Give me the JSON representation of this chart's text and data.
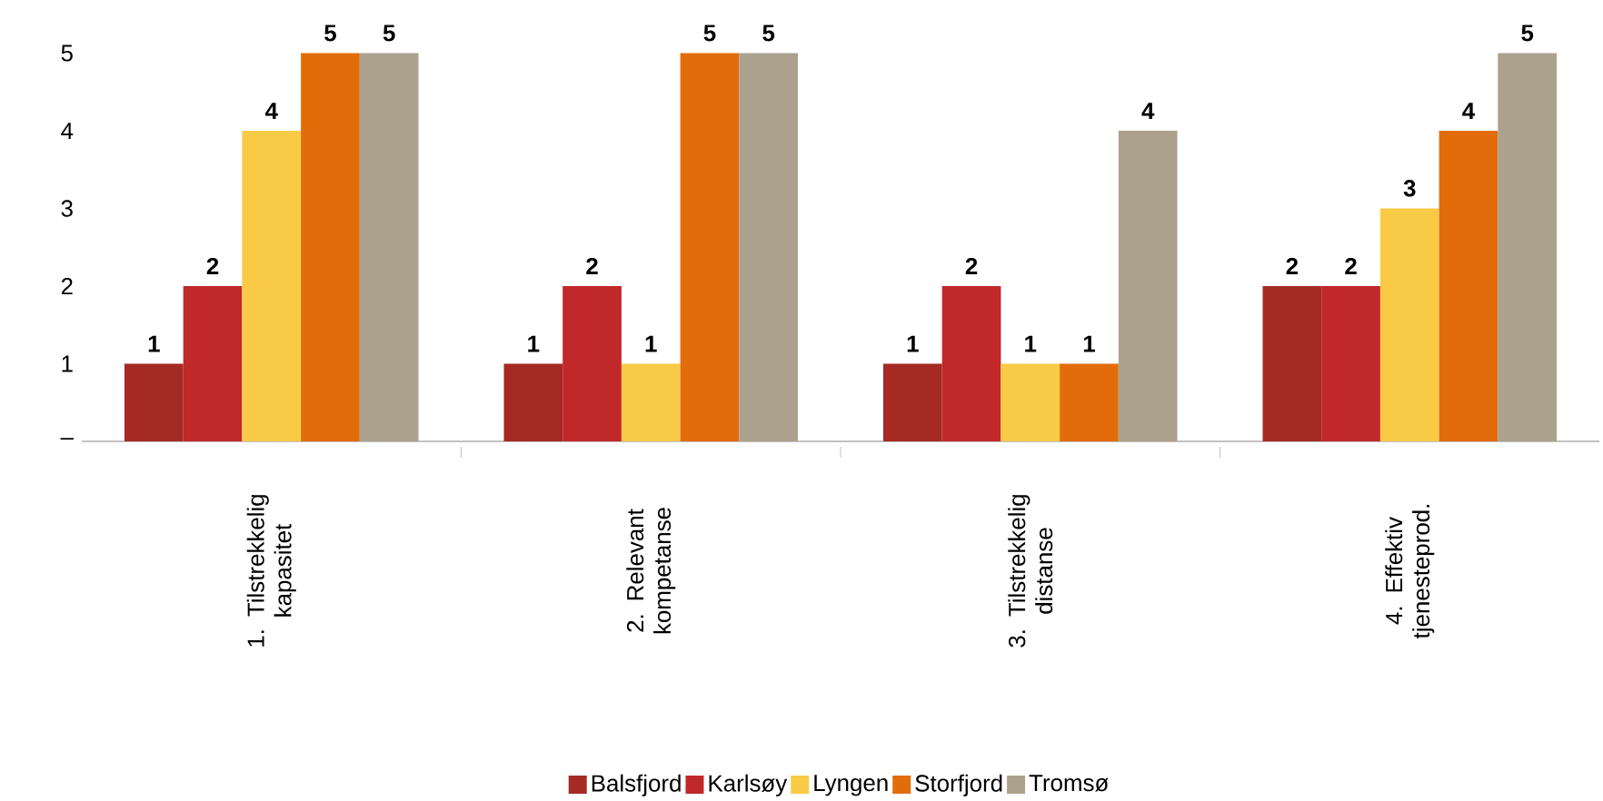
{
  "chart_data": {
    "type": "bar",
    "categories": [
      "1. Tilstrekkelig kapasitet",
      "2. Relevant kompetanse",
      "3. Tilstrekkelig distanse",
      "4. Effektiv tjenesteprod."
    ],
    "series": [
      {
        "name": "Balsfjord",
        "color": "#a52a24",
        "values": [
          1,
          1,
          1,
          2
        ]
      },
      {
        "name": "Karlsøy",
        "color": "#c0282a",
        "values": [
          2,
          2,
          2,
          2
        ]
      },
      {
        "name": "Lyngen",
        "color": "#f9ca45",
        "values": [
          4,
          1,
          1,
          3
        ]
      },
      {
        "name": "Storfjord",
        "color": "#e36c0a",
        "values": [
          5,
          5,
          1,
          4
        ]
      },
      {
        "name": "Tromsø",
        "color": "#aca18c",
        "values": [
          5,
          5,
          4,
          5
        ]
      }
    ],
    "ylim": [
      0,
      5
    ],
    "yticks": [
      {
        "value": 0,
        "label": "–"
      },
      1,
      2,
      3,
      4,
      5
    ],
    "data_labels": true,
    "grid": false,
    "legend": "bottom"
  }
}
